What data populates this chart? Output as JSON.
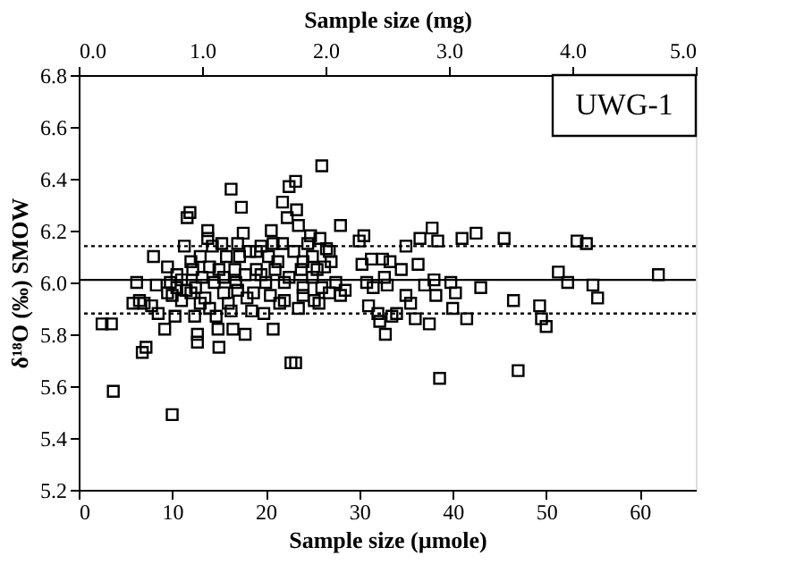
{
  "chart_data": {
    "type": "scatter",
    "xlabel": "Sample size (µmole)",
    "ylabel": "δ¹⁸O (‰) SMOW",
    "x2label": "Sample size (mg)",
    "annotations": [
      "UWG-1"
    ],
    "xlim": [
      0,
      66
    ],
    "xticks": [
      0,
      10,
      20,
      30,
      40,
      50,
      60
    ],
    "x2lim": [
      0,
      5
    ],
    "x2ticks": [
      {
        "value": 0,
        "label": "0.0"
      },
      {
        "value": 1,
        "label": "1.0"
      },
      {
        "value": 2,
        "label": "2.0"
      },
      {
        "value": 3,
        "label": "3.0"
      },
      {
        "value": 4,
        "label": "4.0"
      },
      {
        "value": 5,
        "label": "5.0"
      }
    ],
    "ylim": [
      5.2,
      6.8
    ],
    "yticks": [
      5.2,
      5.4,
      5.6,
      5.8,
      {
        "value": 6,
        "label": "6.0"
      },
      6.2,
      6.4,
      6.6,
      6.8
    ],
    "grid": false,
    "marker": "square",
    "ref_lines": [
      {
        "axis": "y",
        "value": 6.01,
        "label": null,
        "line_style": "solid",
        "color": "#000000"
      },
      {
        "axis": "y",
        "value": 6.14,
        "label": null,
        "line_style": "dotted",
        "color": "#000000"
      },
      {
        "axis": "y",
        "value": 5.88,
        "label": null,
        "line_style": "dotted",
        "color": "#000000"
      }
    ],
    "series": [
      {
        "color": "#000000",
        "x": [
          2.5,
          3.5,
          3.7,
          6.2,
          5.8,
          6.5,
          7,
          6.8,
          7.2,
          7.8,
          8,
          8.3,
          8.5,
          9.2,
          9.5,
          9.8,
          10,
          10,
          10.3,
          10.5,
          11,
          11,
          11.3,
          11.6,
          11.9,
          12,
          12.2,
          12.4,
          12.5,
          12.7,
          12.7,
          13,
          13.2,
          13.5,
          13.8,
          13.8,
          14,
          14.3,
          14.5,
          14.7,
          14.9,
          15,
          15,
          15.3,
          15.5,
          15.8,
          16,
          16.3,
          16.3,
          16.5,
          16.7,
          17,
          17,
          17.4,
          17.8,
          17.6,
          17.8,
          18,
          18.3,
          18.5,
          19,
          19.5,
          19.8,
          20,
          20.3,
          20.6,
          20.8,
          21,
          21.5,
          21.8,
          21.8,
          22,
          22.3,
          22.5,
          22.7,
          23.2,
          23.2,
          23.3,
          23.5,
          23.5,
          24,
          24,
          24.5,
          25,
          25.2,
          25.7,
          25.8,
          26,
          26.3,
          26.5,
          26.8,
          27.5,
          28,
          28,
          28.5,
          30,
          30.3,
          30.5,
          30.8,
          31,
          31.3,
          31.5,
          32,
          32.2,
          32.5,
          32.7,
          32.8,
          33,
          33.3,
          33.5,
          34,
          34.5,
          35,
          35,
          35.5,
          36,
          36.3,
          36.5,
          37,
          37.5,
          37.8,
          38,
          38.2,
          38.4,
          38.6,
          39.8,
          40,
          40.3,
          41,
          41.5,
          42.5,
          43,
          45.5,
          46.5,
          47,
          49.3,
          49.5,
          50,
          51.3,
          52.3,
          53.3,
          54.3,
          55,
          55.5,
          62,
          19,
          18.7,
          20.5,
          21.3,
          22.5,
          23,
          24.8,
          25,
          26,
          26.8,
          24,
          22,
          19.5,
          16.8,
          15.5,
          14,
          12,
          11.5,
          10.5,
          9.5,
          13,
          17.2,
          20.8,
          23.8,
          25.5,
          27
        ],
        "values": [
          5.84,
          5.84,
          5.58,
          6.0,
          5.92,
          5.93,
          5.92,
          5.73,
          5.75,
          5.91,
          6.1,
          5.99,
          5.88,
          5.82,
          6.06,
          6.0,
          5.49,
          5.95,
          5.87,
          5.98,
          6.01,
          5.93,
          6.14,
          6.25,
          6.27,
          5.96,
          6.05,
          5.87,
          5.98,
          5.8,
          5.77,
          6.1,
          6.02,
          5.94,
          6.17,
          6.2,
          5.9,
          6.14,
          6.0,
          5.87,
          5.82,
          5.75,
          6.05,
          6.15,
          5.96,
          6.1,
          5.92,
          6.36,
          5.89,
          5.82,
          6.05,
          6.15,
          5.97,
          6.29,
          5.8,
          6.19,
          6.03,
          5.94,
          6.12,
          5.89,
          6.05,
          6.14,
          5.88,
          6.0,
          6.1,
          6.2,
          5.82,
          6.05,
          5.92,
          6.15,
          6.31,
          6.0,
          6.25,
          6.37,
          5.69,
          5.69,
          6.39,
          6.28,
          6.22,
          5.9,
          6.08,
          5.98,
          6.15,
          6.02,
          5.93,
          5.92,
          6.17,
          6.45,
          6.06,
          6.13,
          5.96,
          6.0,
          6.22,
          5.95,
          5.97,
          6.16,
          6.07,
          6.18,
          6.0,
          5.91,
          6.09,
          5.98,
          5.88,
          5.85,
          6.09,
          6.02,
          5.8,
          5.99,
          6.08,
          5.87,
          5.88,
          6.05,
          6.14,
          5.95,
          5.92,
          5.86,
          6.07,
          6.17,
          5.99,
          5.84,
          6.21,
          6.01,
          5.95,
          6.16,
          5.63,
          6.0,
          5.9,
          5.96,
          6.17,
          5.86,
          6.19,
          5.98,
          6.17,
          5.93,
          5.66,
          5.91,
          5.86,
          5.83,
          6.04,
          6.0,
          6.16,
          6.15,
          5.99,
          5.94,
          6.03,
          6.12,
          5.96,
          5.95,
          6.08,
          6.02,
          6.12,
          6.18,
          6.1,
          5.98,
          6.12,
          5.95,
          5.93,
          6.03,
          6.0,
          6.02,
          6.06,
          6.08,
          5.97,
          6.03,
          5.96,
          5.92,
          6.1,
          6.15,
          6.05,
          6.05,
          6.08
        ]
      }
    ]
  }
}
